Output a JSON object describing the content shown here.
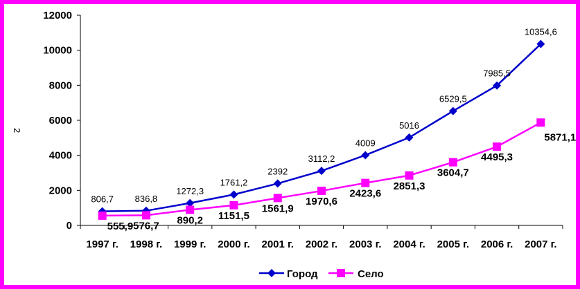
{
  "chart_data": {
    "type": "line",
    "title": "",
    "xlabel": "",
    "ylabel": "2",
    "categories": [
      "1997 г.",
      "1998 г.",
      "1999 г.",
      "2000 г.",
      "2001 г.",
      "2002 г.",
      "2003 г.",
      "2004 г.",
      "2005 г.",
      "2006 г.",
      "2007 г."
    ],
    "ylim": [
      0,
      12000
    ],
    "yticks": [
      "0",
      "2000",
      "4000",
      "6000",
      "8000",
      "10000",
      "12000"
    ],
    "grid": false,
    "legend": "bottom",
    "series": [
      {
        "name": "Город",
        "color": "#0000cc",
        "marker": "diamond",
        "values": [
          806.7,
          836.8,
          1272.3,
          1761.2,
          2392,
          3112.2,
          4009,
          5016,
          6529.5,
          7985.5,
          10354.6
        ],
        "labels": [
          "806,7",
          "836,8",
          "1272,3",
          "1761,2",
          "2392",
          "3112,2",
          "4009",
          "5016",
          "6529,5",
          "7985,5",
          "10354,6"
        ]
      },
      {
        "name": "Село",
        "color": "#ff00ff",
        "marker": "square",
        "values": [
          555.9,
          576.7,
          890.2,
          1151.5,
          1561.9,
          1970.6,
          2423.6,
          2851.3,
          3604.7,
          4495.3,
          5871.1
        ],
        "labels": [
          "555,9",
          "576,7",
          "890,2",
          "1151,5",
          "1561,9",
          "1970,6",
          "2423,6",
          "2851,3",
          "3604,7",
          "4495,3",
          "5871,1"
        ]
      }
    ]
  },
  "colors": {
    "frame": "#ff00ff",
    "axis": "#000000"
  }
}
